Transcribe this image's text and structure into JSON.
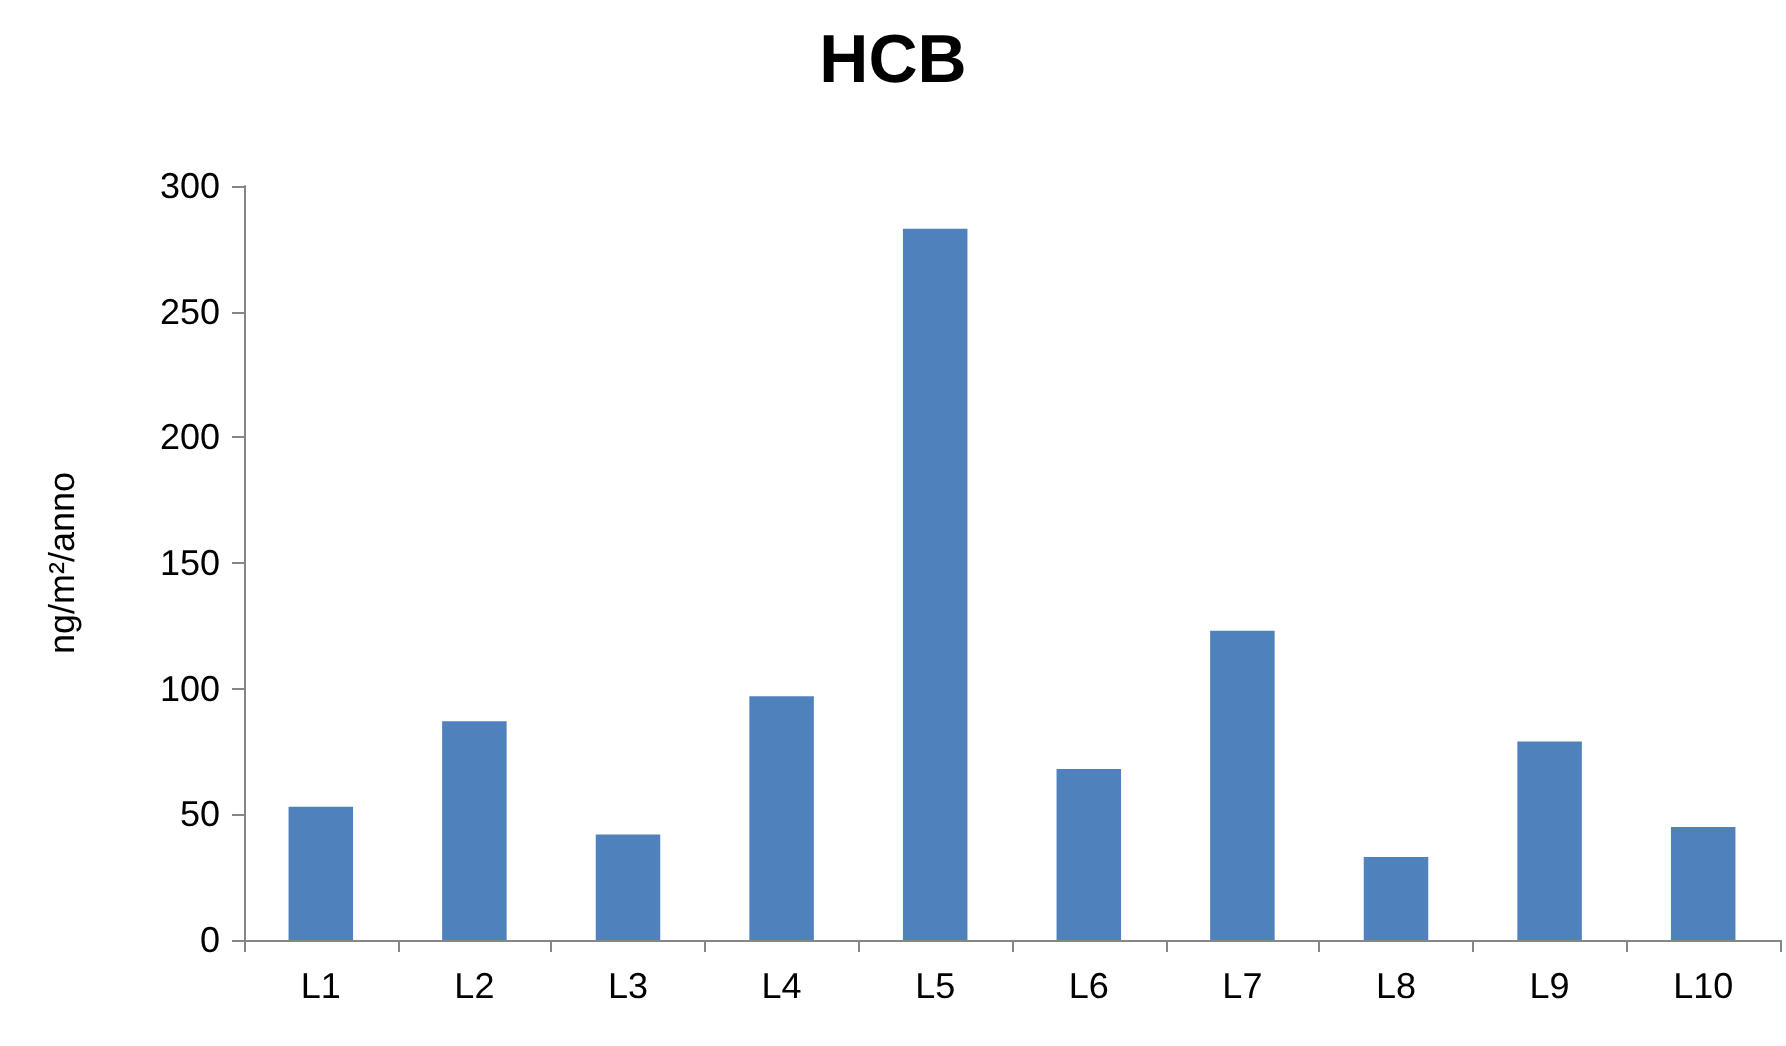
{
  "chart_data": {
    "type": "bar",
    "title": "HCB",
    "ylabel": "ng/m²/anno",
    "categories": [
      "L1",
      "L2",
      "L3",
      "L4",
      "L5",
      "L6",
      "L7",
      "L8",
      "L9",
      "L10"
    ],
    "values": [
      53,
      87,
      42,
      97,
      283,
      68,
      123,
      33,
      79,
      45
    ],
    "color": "#4f81bd",
    "ylim": [
      0,
      300
    ],
    "yticks": [
      0,
      50,
      100,
      150,
      200,
      250,
      300
    ],
    "grid": false
  }
}
